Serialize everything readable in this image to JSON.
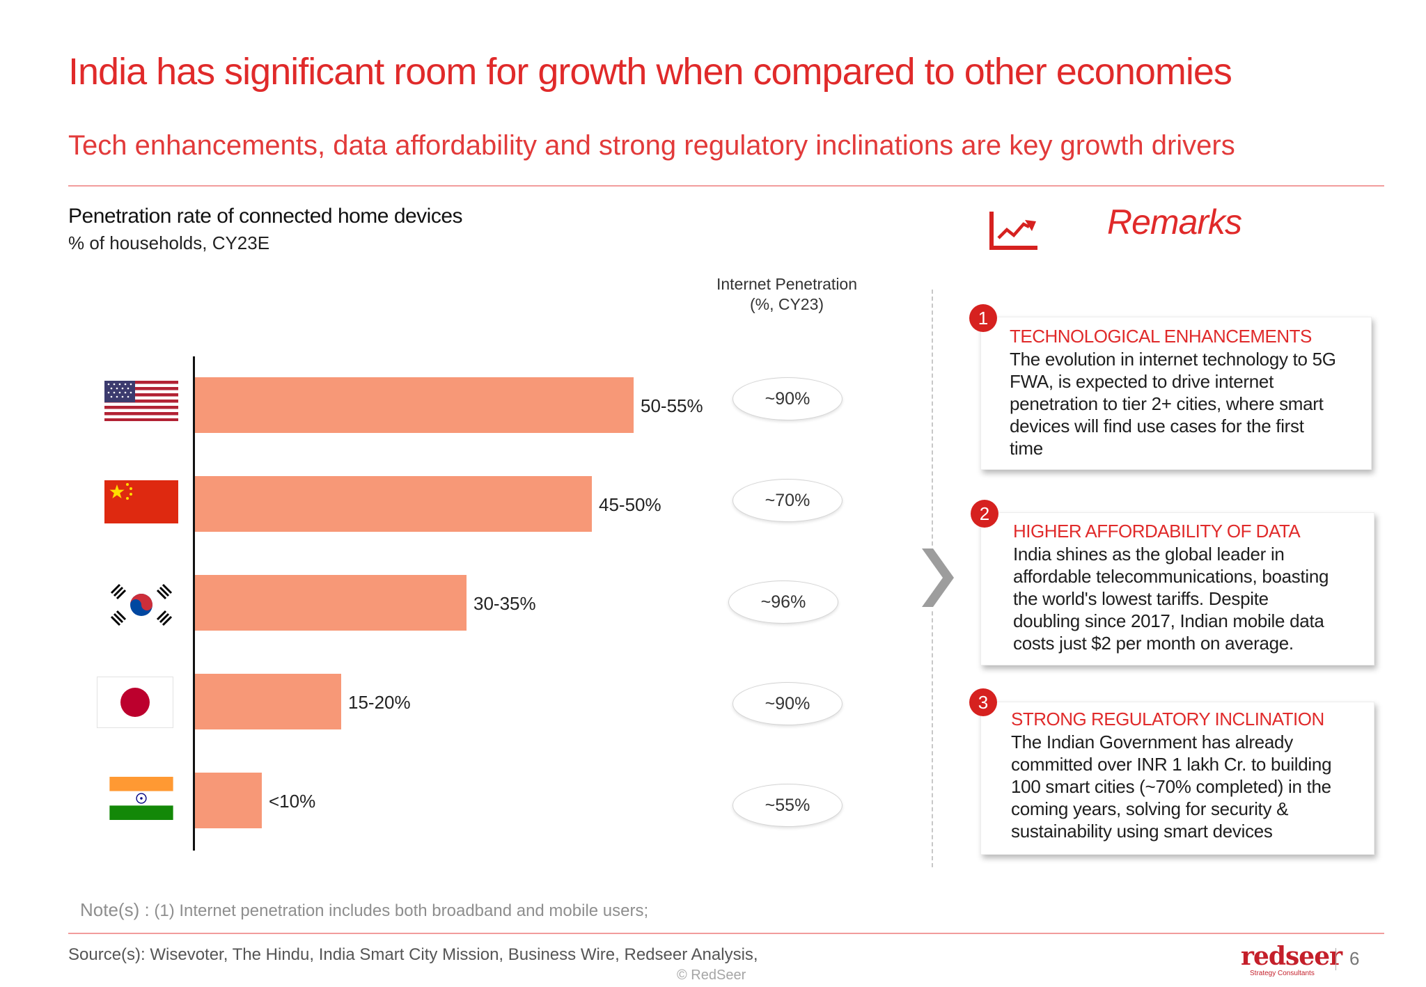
{
  "header": {
    "title": "India has significant room for growth when compared to other economies",
    "subtitle": "Tech enhancements, data affordability and strong regulatory inclinations are key growth drivers"
  },
  "chart_data": {
    "type": "bar",
    "orientation": "horizontal",
    "title": "Penetration rate of connected home devices",
    "subtitle": "% of households, CY23E",
    "categories": [
      "USA",
      "China",
      "South Korea",
      "Japan",
      "India"
    ],
    "values": [
      52.5,
      47.5,
      32.5,
      17.5,
      8
    ],
    "data_labels": [
      "50-55%",
      "45-50%",
      "30-35%",
      "15-20%",
      "<10%"
    ],
    "xlim": [
      0,
      55
    ],
    "color": "#f79877",
    "internet_penetration": {
      "title_line1": "Internet Penetration",
      "title_line2": "(%, CY23)",
      "values": [
        "~90%",
        "~70%",
        "~96%",
        "~90%",
        "~55%"
      ]
    }
  },
  "remarks": {
    "title": "Remarks",
    "items": [
      {
        "number": "1",
        "heading": "TECHNOLOGICAL ENHANCEMENTS",
        "lines": [
          "The evolution in internet technology to 5G",
          "FWA, is expected to drive internet",
          "penetration to tier 2+ cities, where smart",
          "devices will find use cases for the first",
          "time"
        ]
      },
      {
        "number": "2",
        "heading": "HIGHER AFFORDABILITY OF DATA",
        "lines": [
          "India shines as the global leader in",
          "affordable telecommunications, boasting",
          "the world's lowest tariffs. Despite",
          "doubling since 2017, Indian mobile data",
          "costs just $2 per month on average."
        ]
      },
      {
        "number": "3",
        "heading": "STRONG REGULATORY INCLINATION",
        "lines": [
          "The Indian Government has already",
          "committed over INR 1 lakh Cr. to building",
          "100 smart cities (~70% completed) in the",
          "coming years, solving for security &",
          "sustainability using smart devices"
        ]
      }
    ]
  },
  "footer": {
    "note_prefix": "Note(s) :",
    "note_text": "(1) Internet penetration includes both broadband and mobile users;",
    "source": "Source(s): Wisevoter, The Hindu, India Smart City Mission, Business Wire, Redseer Analysis,",
    "copyright": "© RedSeer",
    "logo_text": "redseer",
    "logo_sub": "Strategy Consultants",
    "page_number": "6"
  },
  "colors": {
    "accent": "#e02a2a",
    "bar": "#f79877",
    "badge": "#d6211f"
  }
}
